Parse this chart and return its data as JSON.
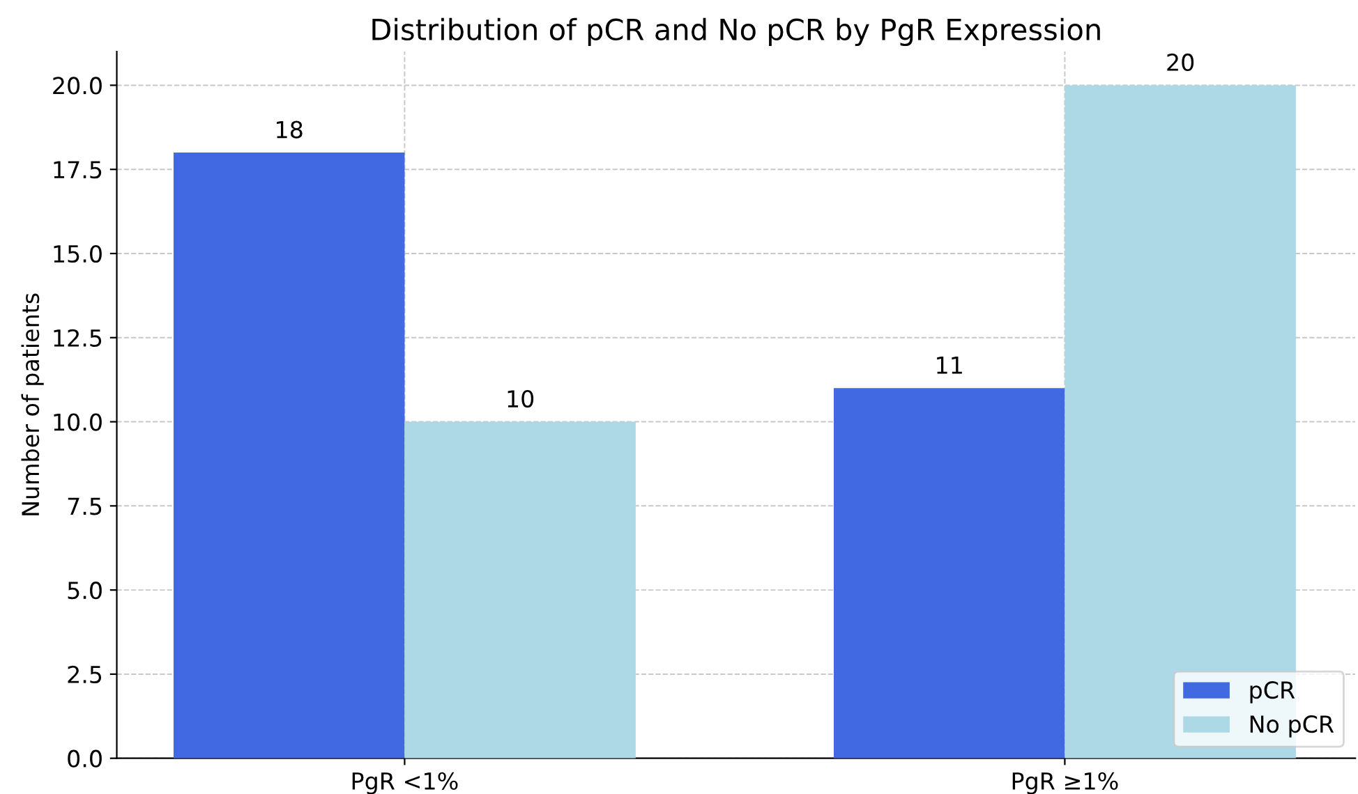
{
  "chart_data": {
    "type": "bar",
    "title": "Distribution of pCR and No pCR by PgR Expression",
    "ylabel": "Number of patients",
    "categories": [
      "PgR <1%",
      "PgR ≥1%"
    ],
    "series": [
      {
        "name": "pCR",
        "color": "#4169e1",
        "values": [
          18,
          11
        ]
      },
      {
        "name": "No pCR",
        "color": "#add8e6",
        "values": [
          10,
          20
        ]
      }
    ],
    "ylim": [
      0,
      21
    ],
    "yticks": [
      {
        "value": 0,
        "label": "0.0"
      },
      {
        "value": 2.5,
        "label": "2.5"
      },
      {
        "value": 5,
        "label": "5.0"
      },
      {
        "value": 7.5,
        "label": "7.5"
      },
      {
        "value": 10,
        "label": "10.0"
      },
      {
        "value": 12.5,
        "label": "12.5"
      },
      {
        "value": 15,
        "label": "15.0"
      },
      {
        "value": 17.5,
        "label": "17.5"
      },
      {
        "value": 20,
        "label": "20.0"
      }
    ],
    "data_labels": true,
    "grid": true,
    "legend": "bottom right"
  }
}
